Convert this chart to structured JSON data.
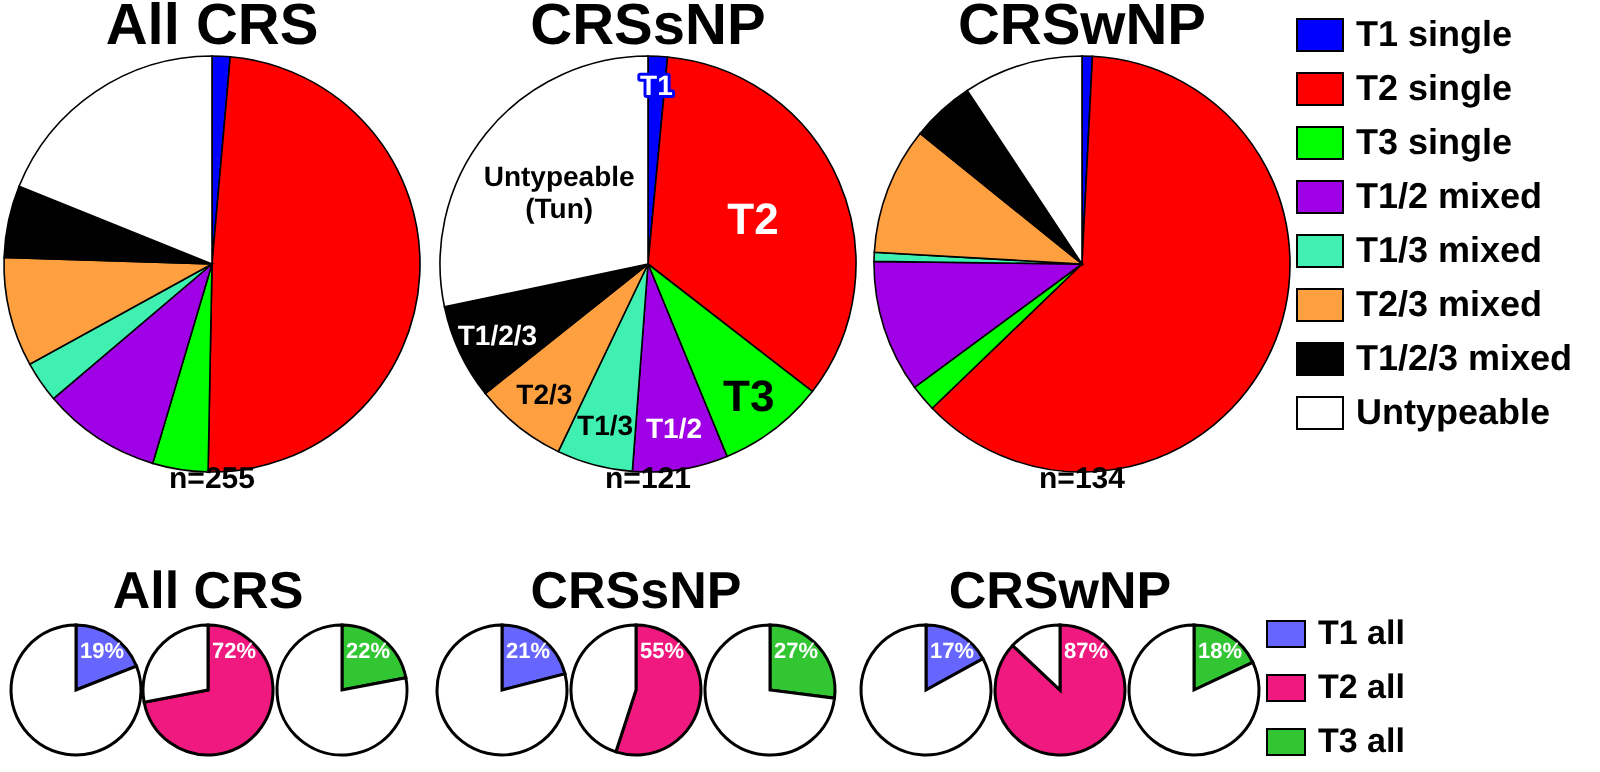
{
  "chart_data": [
    {
      "type": "pie",
      "title": "All CRS",
      "categories": [
        "T1 single",
        "T2 single",
        "T3 single",
        "T1/2 mixed",
        "T1/3 mixed",
        "T2/3 mixed",
        "T1/2/3 mixed",
        "Untypeable"
      ],
      "values": [
        1.4,
        48.9,
        4.3,
        9.2,
        3.2,
        8.5,
        5.6,
        18.9
      ],
      "colors": [
        "#0000ff",
        "#ff0000",
        "#00ff00",
        "#a000e6",
        "#40f0b0",
        "#ffa040",
        "#000000",
        "#ffffff"
      ],
      "annotations": [
        "n=255"
      ],
      "legend": "right"
    },
    {
      "type": "pie",
      "title": "CRSsNP",
      "categories": [
        null,
        null,
        null,
        null,
        null,
        null,
        null,
        null
      ],
      "values": [
        1.5,
        34,
        8.3,
        7.4,
        5.9,
        7.2,
        7.4,
        28.3
      ],
      "colors": [
        "#0000ff",
        "#ff0000",
        "#00ff00",
        "#a000e6",
        "#40f0b0",
        "#ffa040",
        "#000000",
        "#ffffff"
      ],
      "value_labels": [
        "T1",
        "T2",
        "T3",
        "T1/2",
        "T1/3",
        "T2/3",
        "T1/2/3",
        "Untypeable\n(Tun)"
      ],
      "annotations": [
        "n=121"
      ]
    },
    {
      "type": "pie",
      "title": "CRSwNP",
      "categories": [
        null,
        null,
        null,
        null,
        null,
        null,
        null,
        null
      ],
      "values": [
        0.8,
        62,
        2.1,
        10.3,
        0.7,
        9.9,
        4.9,
        9.3
      ],
      "colors": [
        "#0000ff",
        "#ff0000",
        "#00ff00",
        "#a000e6",
        "#40f0b0",
        "#ffa040",
        "#000000",
        "#ffffff"
      ],
      "annotations": [
        "n=134"
      ]
    },
    {
      "type": "pie",
      "categories": [
        "T1 all",
        null
      ],
      "values": [
        19,
        81
      ],
      "colors": [
        "#6666ff",
        "#ffffff"
      ],
      "value_labels": [
        "19%",
        null
      ],
      "legend": "right"
    },
    {
      "type": "pie",
      "title": "All CRS",
      "categories": [
        "T2 all",
        null
      ],
      "values": [
        72,
        28
      ],
      "colors": [
        "#f0197f",
        "#ffffff"
      ],
      "value_labels": [
        "72%",
        null
      ],
      "legend": "right"
    },
    {
      "type": "pie",
      "categories": [
        "T3 all",
        null
      ],
      "values": [
        22,
        78
      ],
      "colors": [
        "#33c633",
        "#ffffff"
      ],
      "value_labels": [
        "22%",
        null
      ],
      "legend": "right"
    },
    {
      "type": "pie",
      "categories": [
        null,
        null
      ],
      "values": [
        21,
        79
      ],
      "colors": [
        "#6666ff",
        "#ffffff"
      ],
      "value_labels": [
        "21%",
        null
      ]
    },
    {
      "type": "pie",
      "title": "CRSsNP",
      "categories": [
        null,
        null
      ],
      "values": [
        55,
        45
      ],
      "colors": [
        "#f0197f",
        "#ffffff"
      ],
      "value_labels": [
        "55%",
        null
      ]
    },
    {
      "type": "pie",
      "categories": [
        null,
        null
      ],
      "values": [
        27,
        73
      ],
      "colors": [
        "#33c633",
        "#ffffff"
      ],
      "value_labels": [
        "27%",
        null
      ]
    },
    {
      "type": "pie",
      "categories": [
        null,
        null
      ],
      "values": [
        17,
        83
      ],
      "colors": [
        "#6666ff",
        "#ffffff"
      ],
      "value_labels": [
        "17%",
        null
      ]
    },
    {
      "type": "pie",
      "title": "CRSwNP",
      "categories": [
        null,
        null
      ],
      "values": [
        87,
        13
      ],
      "colors": [
        "#f0197f",
        "#ffffff"
      ],
      "value_labels": [
        "87%",
        null
      ]
    },
    {
      "type": "pie",
      "categories": [
        null,
        null
      ],
      "values": [
        18,
        82
      ],
      "colors": [
        "#33c633",
        "#ffffff"
      ],
      "value_labels": [
        "18%",
        null
      ]
    }
  ]
}
